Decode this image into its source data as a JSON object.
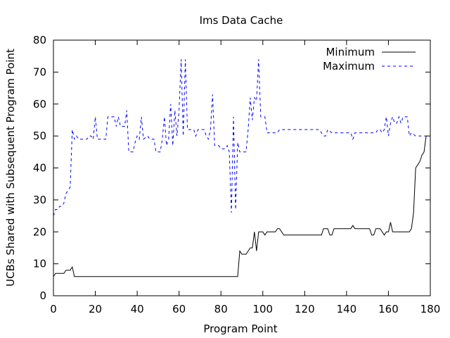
{
  "chart_data": {
    "type": "line",
    "title": "Ims Data Cache",
    "xlabel": "Program Point",
    "ylabel": "UCBs Shared with Subsequent Program Point",
    "xlim": [
      0,
      180
    ],
    "ylim": [
      0,
      80
    ],
    "xticks": [
      0,
      20,
      40,
      60,
      80,
      100,
      120,
      140,
      160,
      180
    ],
    "yticks": [
      0,
      10,
      20,
      30,
      40,
      50,
      60,
      70,
      80
    ],
    "grid": false,
    "legend_position": "top-right",
    "series": [
      {
        "name": "Minimum",
        "color": "#000000",
        "dash": "solid",
        "points": [
          [
            0,
            6
          ],
          [
            1,
            7
          ],
          [
            2,
            7
          ],
          [
            3,
            7
          ],
          [
            4,
            7
          ],
          [
            5,
            7
          ],
          [
            6,
            8
          ],
          [
            7,
            8
          ],
          [
            8,
            8
          ],
          [
            9,
            9
          ],
          [
            10,
            6
          ],
          [
            30,
            6
          ],
          [
            60,
            6
          ],
          [
            88,
            6
          ],
          [
            89,
            14
          ],
          [
            90,
            13
          ],
          [
            92,
            13
          ],
          [
            93,
            14
          ],
          [
            94,
            15
          ],
          [
            95,
            15
          ],
          [
            96,
            20
          ],
          [
            97,
            14
          ],
          [
            98,
            20
          ],
          [
            100,
            20
          ],
          [
            101,
            19
          ],
          [
            102,
            20
          ],
          [
            106,
            20
          ],
          [
            107,
            21
          ],
          [
            108,
            21
          ],
          [
            110,
            19
          ],
          [
            128,
            19
          ],
          [
            129,
            21
          ],
          [
            131,
            21
          ],
          [
            132,
            19
          ],
          [
            133,
            19
          ],
          [
            134,
            21
          ],
          [
            142,
            21
          ],
          [
            143,
            22
          ],
          [
            144,
            21
          ],
          [
            151,
            21
          ],
          [
            152,
            19
          ],
          [
            153,
            19
          ],
          [
            154,
            21
          ],
          [
            156,
            21
          ],
          [
            158,
            19
          ],
          [
            159,
            20
          ],
          [
            160,
            20
          ],
          [
            161,
            23
          ],
          [
            162,
            20
          ],
          [
            170,
            20
          ],
          [
            171,
            21
          ],
          [
            172,
            26
          ],
          [
            173,
            40
          ],
          [
            174,
            41
          ],
          [
            175,
            42
          ],
          [
            176,
            44
          ],
          [
            177,
            45
          ],
          [
            178,
            50
          ]
        ]
      },
      {
        "name": "Maximum",
        "color": "#0000ff",
        "dash": "dashed",
        "points": [
          [
            0,
            25
          ],
          [
            1,
            27
          ],
          [
            2,
            27
          ],
          [
            3,
            28
          ],
          [
            4,
            28
          ],
          [
            5,
            29
          ],
          [
            6,
            32
          ],
          [
            7,
            33
          ],
          [
            8,
            34
          ],
          [
            9,
            52
          ],
          [
            10,
            49
          ],
          [
            11,
            50
          ],
          [
            12,
            49
          ],
          [
            16,
            49
          ],
          [
            17,
            50
          ],
          [
            18,
            50
          ],
          [
            19,
            49
          ],
          [
            20,
            56
          ],
          [
            21,
            49
          ],
          [
            25,
            49
          ],
          [
            26,
            56
          ],
          [
            29,
            56
          ],
          [
            30,
            53
          ],
          [
            31,
            56
          ],
          [
            32,
            53
          ],
          [
            34,
            53
          ],
          [
            35,
            58
          ],
          [
            36,
            45
          ],
          [
            38,
            45
          ],
          [
            39,
            48
          ],
          [
            40,
            50
          ],
          [
            41,
            49
          ],
          [
            42,
            56
          ],
          [
            43,
            49
          ],
          [
            45,
            50
          ],
          [
            46,
            49
          ],
          [
            48,
            49
          ],
          [
            49,
            45
          ],
          [
            51,
            45
          ],
          [
            52,
            49
          ],
          [
            53,
            56
          ],
          [
            54,
            47
          ],
          [
            55,
            49
          ],
          [
            56,
            60
          ],
          [
            57,
            47
          ],
          [
            58,
            58
          ],
          [
            59,
            50
          ],
          [
            60,
            58
          ],
          [
            61,
            74
          ],
          [
            62,
            50
          ],
          [
            63,
            74
          ],
          [
            64,
            52
          ],
          [
            67,
            52
          ],
          [
            68,
            50
          ],
          [
            69,
            52
          ],
          [
            72,
            52
          ],
          [
            73,
            50
          ],
          [
            74,
            49
          ],
          [
            75,
            52
          ],
          [
            76,
            63
          ],
          [
            77,
            47
          ],
          [
            79,
            47
          ],
          [
            80,
            46
          ],
          [
            82,
            46
          ],
          [
            83,
            47
          ],
          [
            84,
            45
          ],
          [
            85,
            26
          ],
          [
            86,
            56
          ],
          [
            87,
            27
          ],
          [
            88,
            48
          ],
          [
            89,
            45
          ],
          [
            92,
            45
          ],
          [
            93,
            52
          ],
          [
            94,
            62
          ],
          [
            95,
            55
          ],
          [
            96,
            62
          ],
          [
            97,
            61
          ],
          [
            98,
            74
          ],
          [
            99,
            56
          ],
          [
            101,
            56
          ],
          [
            102,
            51
          ],
          [
            107,
            51
          ],
          [
            108,
            52
          ],
          [
            127,
            52
          ],
          [
            128,
            51
          ],
          [
            129,
            50
          ],
          [
            130,
            50
          ],
          [
            131,
            52
          ],
          [
            133,
            51
          ],
          [
            142,
            51
          ],
          [
            143,
            49
          ],
          [
            144,
            51
          ],
          [
            154,
            51
          ],
          [
            155,
            52
          ],
          [
            156,
            52
          ],
          [
            157,
            51
          ],
          [
            158,
            52
          ],
          [
            159,
            56
          ],
          [
            160,
            50
          ],
          [
            161,
            54
          ],
          [
            162,
            56
          ],
          [
            163,
            54
          ],
          [
            164,
            54
          ],
          [
            165,
            56
          ],
          [
            166,
            54
          ],
          [
            167,
            56
          ],
          [
            169,
            56
          ],
          [
            170,
            50
          ],
          [
            171,
            51
          ],
          [
            173,
            50
          ],
          [
            178,
            50
          ]
        ]
      }
    ]
  }
}
